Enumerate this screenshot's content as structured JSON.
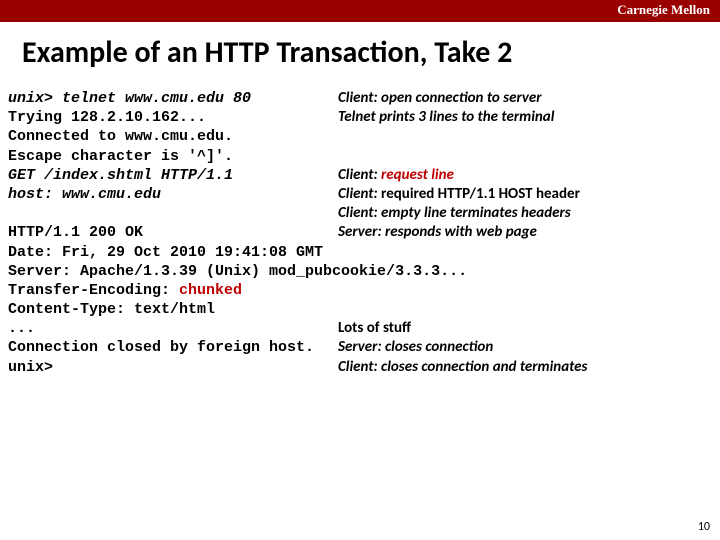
{
  "header": {
    "university": "Carnegie Mellon",
    "bar_color": "#990000"
  },
  "title": "Example of an HTTP Transaction, Take 2",
  "page_number": "10",
  "rows": [
    {
      "left": "unix> telnet www.cmu.edu 80",
      "left_italic": true,
      "right_prefix": "Client: ",
      "right_prefix_italic": true,
      "right_body": "open connection to server",
      "right_body_italic": true,
      "right_body_red": false
    },
    {
      "left": "Trying 128.2.10.162...",
      "left_italic": false,
      "right_prefix": "",
      "right_prefix_italic": false,
      "right_body": "Telnet prints 3 lines to the terminal",
      "right_body_italic": true,
      "right_body_red": false
    },
    {
      "left": "Connected to www.cmu.edu.",
      "left_italic": false,
      "right_prefix": "",
      "right_prefix_italic": false,
      "right_body": "",
      "right_body_italic": false,
      "right_body_red": false
    },
    {
      "left": "Escape character is '^]'.",
      "left_italic": false,
      "right_prefix": "",
      "right_prefix_italic": false,
      "right_body": "",
      "right_body_italic": false,
      "right_body_red": false
    },
    {
      "left": "GET /index.shtml HTTP/1.1",
      "left_italic": true,
      "right_prefix": "Client: ",
      "right_prefix_italic": true,
      "right_body": "request line",
      "right_body_italic": true,
      "right_body_red": true
    },
    {
      "left": "host: www.cmu.edu",
      "left_italic": true,
      "right_prefix": "Client: ",
      "right_prefix_italic": true,
      "right_body": "required HTTP/1.1 HOST header",
      "right_body_italic": false,
      "right_body_red": false
    },
    {
      "left": "",
      "left_italic": false,
      "right_prefix": "Client: ",
      "right_prefix_italic": true,
      "right_body": "empty line terminates headers",
      "right_body_italic": true,
      "right_body_red": false
    },
    {
      "left": "HTTP/1.1 200 OK",
      "left_italic": false,
      "right_prefix": "Server: ",
      "right_prefix_italic": true,
      "right_body": "responds with web page",
      "right_body_italic": true,
      "right_body_red": false
    }
  ],
  "full_lines": [
    {
      "text": "Date: Fri, 29 Oct 2010 19:41:08 GMT",
      "red_word": ""
    },
    {
      "text": "Server: Apache/1.3.39 (Unix) mod_pubcookie/3.3.3...",
      "red_word": ""
    },
    {
      "text_before": "Transfer-Encoding: ",
      "red_word": "chunked",
      "text_after": ""
    },
    {
      "text": "Content-Type: text/html",
      "red_word": ""
    }
  ],
  "rows2": [
    {
      "left": "...",
      "left_italic": false,
      "right_prefix": "",
      "right_prefix_italic": false,
      "right_body": "Lots of stuff",
      "right_body_italic": false,
      "right_body_red": false
    },
    {
      "left": "Connection closed by foreign host.",
      "left_italic": false,
      "right_prefix": "Server: ",
      "right_prefix_italic": true,
      "right_body": "closes connection",
      "right_body_italic": true,
      "right_body_red": false
    },
    {
      "left": "unix>",
      "left_italic": false,
      "right_prefix": "Client: ",
      "right_prefix_italic": true,
      "right_body": "closes connection and terminates",
      "right_body_italic": true,
      "right_body_red": false
    }
  ]
}
